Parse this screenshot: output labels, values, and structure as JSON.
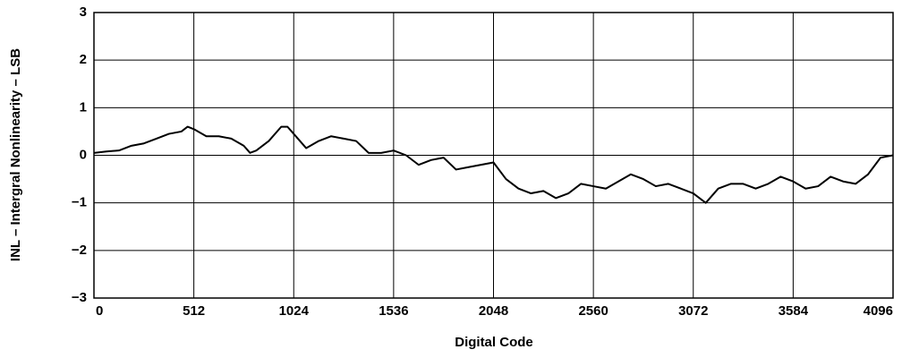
{
  "chart_data": {
    "type": "line",
    "x_label": "Digital Code",
    "y_label": "INL – Intergral Nonlinearity – LSB",
    "x": [
      0,
      64,
      128,
      192,
      256,
      320,
      384,
      448,
      480,
      512,
      576,
      640,
      704,
      768,
      800,
      832,
      896,
      960,
      992,
      1024,
      1088,
      1152,
      1216,
      1280,
      1344,
      1408,
      1472,
      1536,
      1600,
      1664,
      1728,
      1792,
      1856,
      1920,
      1984,
      2048,
      2112,
      2176,
      2240,
      2304,
      2368,
      2432,
      2496,
      2560,
      2624,
      2688,
      2752,
      2816,
      2880,
      2944,
      3008,
      3072,
      3136,
      3200,
      3264,
      3328,
      3392,
      3456,
      3520,
      3584,
      3648,
      3712,
      3776,
      3840,
      3904,
      3968,
      4032,
      4096
    ],
    "values": [
      0.05,
      0.08,
      0.1,
      0.2,
      0.25,
      0.35,
      0.45,
      0.5,
      0.6,
      0.55,
      0.4,
      0.4,
      0.35,
      0.2,
      0.05,
      0.1,
      0.3,
      0.6,
      0.6,
      0.45,
      0.15,
      0.3,
      0.4,
      0.35,
      0.3,
      0.05,
      0.05,
      0.1,
      0.0,
      -0.2,
      -0.1,
      -0.05,
      -0.3,
      -0.25,
      -0.2,
      -0.15,
      -0.5,
      -0.7,
      -0.8,
      -0.75,
      -0.9,
      -0.8,
      -0.6,
      -0.65,
      -0.7,
      -0.55,
      -0.4,
      -0.5,
      -0.65,
      -0.6,
      -0.7,
      -0.8,
      -1.0,
      -0.7,
      -0.6,
      -0.6,
      -0.7,
      -0.6,
      -0.45,
      -0.55,
      -0.7,
      -0.65,
      -0.45,
      -0.55,
      -0.6,
      -0.4,
      -0.05,
      0.0
    ],
    "color": "#000000",
    "xlim": [
      0,
      4096
    ],
    "xticks": [
      0,
      512,
      1024,
      1536,
      2048,
      2560,
      3072,
      3584,
      4096
    ],
    "ylim": [
      -3,
      3
    ],
    "yticks": [
      {
        "value": -3,
        "label": "−3"
      },
      {
        "value": -2,
        "label": "−2"
      },
      {
        "value": -1,
        "label": "−1"
      },
      0,
      1,
      2,
      3
    ],
    "grid": true
  }
}
